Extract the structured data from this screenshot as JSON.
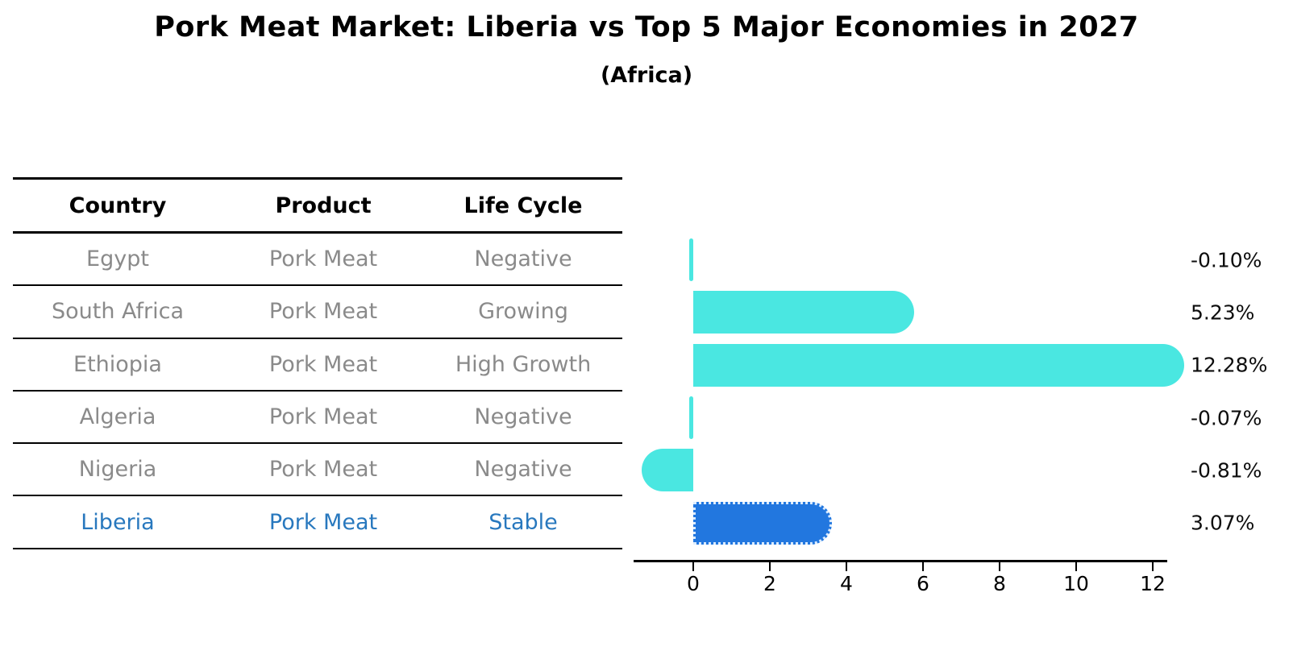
{
  "title": "Pork Meat Market: Liberia vs Top 5 Major Economies in 2027",
  "subtitle": "(Africa)",
  "table": {
    "headers": [
      "Country",
      "Product",
      "Life Cycle"
    ],
    "rows": [
      {
        "country": "Egypt",
        "product": "Pork Meat",
        "life_cycle": "Negative",
        "highlight": false
      },
      {
        "country": "South Africa",
        "product": "Pork Meat",
        "life_cycle": "Growing",
        "highlight": false
      },
      {
        "country": "Ethiopia",
        "product": "Pork Meat",
        "life_cycle": "High Growth",
        "highlight": false
      },
      {
        "country": "Algeria",
        "product": "Pork Meat",
        "life_cycle": "Negative",
        "highlight": false
      },
      {
        "country": "Nigeria",
        "product": "Pork Meat",
        "life_cycle": "Negative",
        "highlight": false
      },
      {
        "country": "Liberia",
        "product": "Pork Meat",
        "life_cycle": "Stable",
        "highlight": true
      }
    ]
  },
  "chart_data": {
    "type": "bar",
    "orientation": "horizontal",
    "title": "Pork Meat Market: Liberia vs Top 5 Major Economies in 2027",
    "subtitle": "(Africa)",
    "categories": [
      "Egypt",
      "South Africa",
      "Ethiopia",
      "Algeria",
      "Nigeria",
      "Liberia"
    ],
    "values": [
      -0.1,
      5.23,
      12.28,
      -0.07,
      -0.81,
      3.07
    ],
    "value_labels": [
      "-0.10%",
      "5.23%",
      "12.28%",
      "-0.07%",
      "-0.81%",
      "3.07%"
    ],
    "units": "percent CAGR",
    "x_ticks": [
      0,
      2,
      4,
      6,
      8,
      10,
      12
    ],
    "xlim": [
      -1.7,
      12.8
    ],
    "grid": false,
    "legend": false,
    "highlight_index": 5,
    "bar_color_default": "#4ae7e1",
    "bar_color_highlight": "#2277df",
    "highlight_text_color": "#2878be"
  }
}
